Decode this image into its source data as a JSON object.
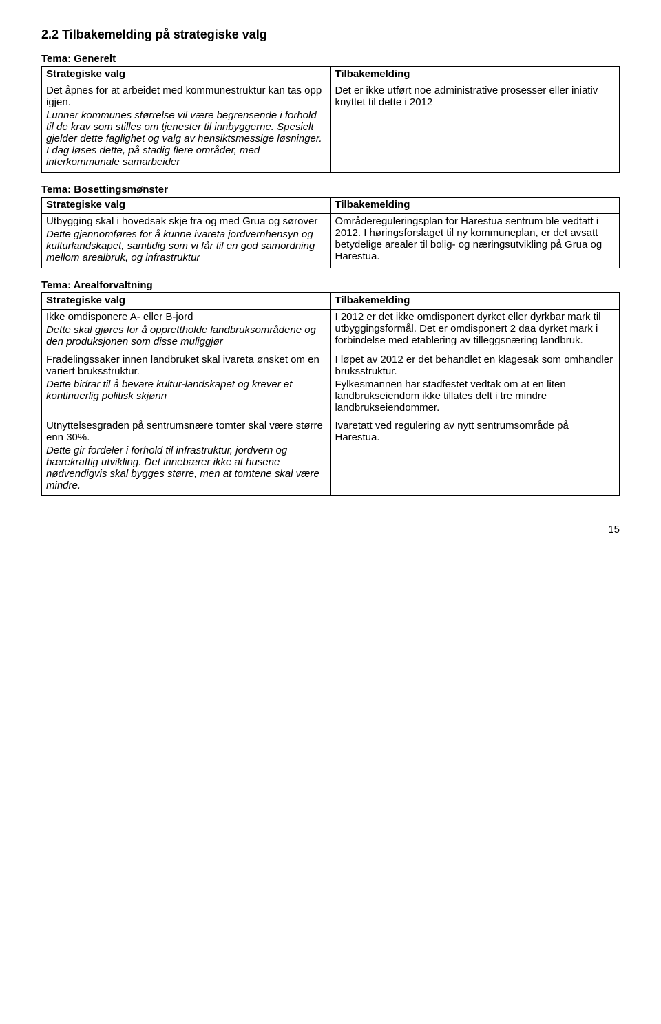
{
  "heading": "2.2  Tilbakemelding på strategiske valg",
  "tables": [
    {
      "theme": "Tema: Generelt",
      "leftHeader": "Strategiske valg",
      "rightHeader": "Tilbakemelding",
      "rows": [
        {
          "left": [
            {
              "text": "Det åpnes for at arbeidet med kommunestruktur kan tas opp igjen.",
              "italic": false,
              "indent": false
            }
          ],
          "leftExtra": [
            {
              "text": "Lunner kommunes størrelse vil være begrensende i forhold til de krav som stilles om tjenester til innbyggerne. Spesielt gjelder dette faglighet og valg av hensiktsmessige løsninger. I dag løses dette, på stadig flere områder, med interkommunale samarbeider",
              "italic": true,
              "indent": false
            }
          ],
          "right": [
            {
              "text": "Det er ikke utført noe administrative prosesser eller iniativ knyttet til dette i 2012"
            }
          ]
        }
      ]
    },
    {
      "theme": "Tema: Bosettingsmønster",
      "leftHeader": "Strategiske valg",
      "rightHeader": "Tilbakemelding",
      "rows": [
        {
          "left": [
            {
              "text": "Utbygging skal i hovedsak skje fra og med Grua og sørover",
              "italic": false,
              "indent": false
            },
            {
              "text": "Dette gjennomføres for å kunne ivareta jordvernhensyn og kulturlandskapet, samtidig som vi får til en god samordning mellom arealbruk, og infrastruktur",
              "italic": true,
              "indent": true
            }
          ],
          "right": [
            {
              "text": "Områdereguleringsplan for Harestua sentrum ble vedtatt i 2012. I høringsforslaget til ny kommuneplan, er det avsatt betydelige arealer til bolig- og næringsutvikling på Grua og Harestua."
            }
          ]
        }
      ]
    },
    {
      "theme": "Tema: Arealforvaltning",
      "leftHeader": "Strategiske valg",
      "rightHeader": "Tilbakemelding",
      "rows": [
        {
          "left": [
            {
              "text": "Ikke omdisponere A- eller B-jord",
              "italic": false,
              "indent": false
            },
            {
              "text": "Dette skal gjøres for å opprettholde landbruksområdene og den produksjonen som disse muliggjør",
              "italic": true,
              "indent": true
            }
          ],
          "right": [
            {
              "text": "I 2012 er det ikke omdisponert dyrket eller dyrkbar mark til utbyggingsformål. Det er omdisponert 2 daa dyrket mark i forbindelse med etablering av tilleggsnæring landbruk."
            }
          ]
        },
        {
          "left": [
            {
              "text": "Fradelingssaker innen landbruket skal ivareta ønsket om en variert bruksstruktur.",
              "italic": false,
              "indent": false
            },
            {
              "text": "Dette bidrar til å bevare kultur-landskapet og krever et kontinuerlig politisk skjønn",
              "italic": true,
              "indent": true
            }
          ],
          "right": [
            {
              "text": "I løpet av 2012 er det behandlet en klagesak som omhandler bruksstruktur."
            },
            {
              "text": "Fylkesmannen har stadfestet vedtak om at en liten landbrukseiendom ikke tillates delt i tre mindre landbrukseiendommer."
            }
          ]
        },
        {
          "left": [
            {
              "text": "Utnyttelsesgraden på sentrumsnære tomter skal være større enn 30%.",
              "italic": false,
              "indent": false
            },
            {
              "text": "Dette gir fordeler i forhold til infrastruktur, jordvern og bærekraftig utvikling.  Det innebærer ikke at husene nødvendigvis skal bygges større, men at tomtene skal være mindre.",
              "italic": true,
              "indent": true
            }
          ],
          "right": [
            {
              "text": "Ivaretatt ved regulering av nytt sentrumsområde på Harestua."
            }
          ]
        }
      ]
    }
  ],
  "pageNumber": "15"
}
